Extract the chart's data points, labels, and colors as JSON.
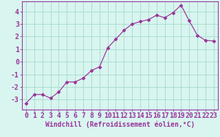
{
  "x": [
    0,
    1,
    2,
    3,
    4,
    5,
    6,
    7,
    8,
    9,
    10,
    11,
    12,
    13,
    14,
    15,
    16,
    17,
    18,
    19,
    20,
    21,
    22,
    23
  ],
  "y": [
    -3.3,
    -2.6,
    -2.6,
    -2.9,
    -2.4,
    -1.6,
    -1.6,
    -1.3,
    -0.7,
    -0.4,
    1.1,
    1.8,
    2.5,
    3.0,
    3.2,
    3.35,
    3.7,
    3.5,
    3.9,
    4.5,
    3.25,
    2.1,
    1.7,
    1.65
  ],
  "line_color": "#993399",
  "marker": "D",
  "marker_size": 2.5,
  "background_color": "#d8f5f0",
  "grid_color": "#aaddcc",
  "xlabel": "Windchill (Refroidissement éolien,°C)",
  "xlabel_fontsize": 7,
  "xlim": [
    -0.5,
    23.5
  ],
  "ylim": [
    -3.8,
    4.8
  ],
  "yticks": [
    -3,
    -2,
    -1,
    0,
    1,
    2,
    3,
    4
  ],
  "xticks": [
    0,
    1,
    2,
    3,
    4,
    5,
    6,
    7,
    8,
    9,
    10,
    11,
    12,
    13,
    14,
    15,
    16,
    17,
    18,
    19,
    20,
    21,
    22,
    23
  ],
  "tick_fontsize": 7,
  "spine_color": "#993399",
  "fig_bg": "#d8f5f0"
}
